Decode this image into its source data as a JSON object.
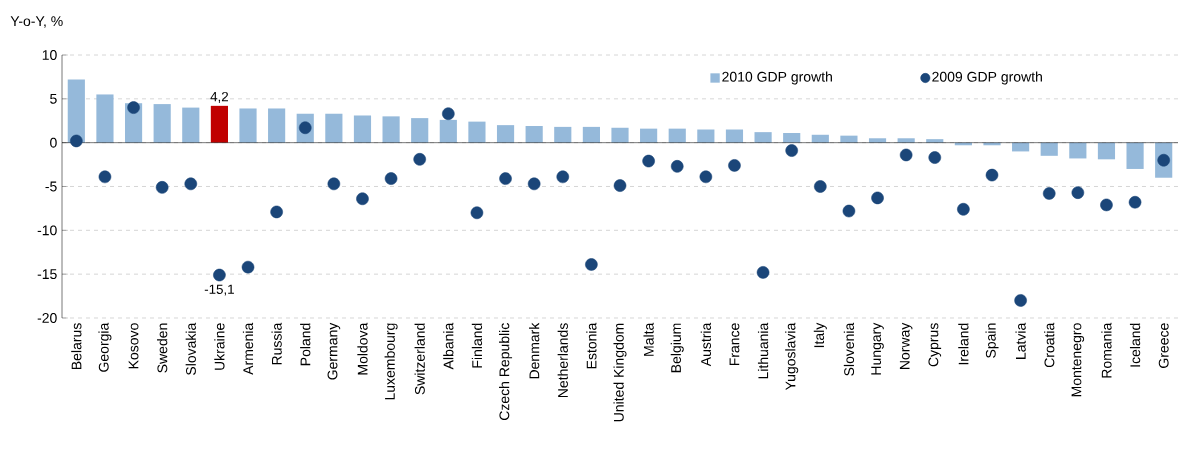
{
  "chart_data": {
    "type": "bar",
    "ylabel": "Y-o-Y, %",
    "categories": [
      "Belarus",
      "Georgia",
      "Kosovo",
      "Sweden",
      "Slovakia",
      "Ukraine",
      "Armenia",
      "Russia",
      "Poland",
      "Germany",
      "Moldova",
      "Luxembourg",
      "Switzerland",
      "Albania",
      "Finland",
      "Czech Republic",
      "Denmark",
      "Netherlands",
      "Estonia",
      "United Kingdom",
      "Malta",
      "Belgium",
      "Austria",
      "France",
      "Lithuania",
      "Yugoslavia",
      "Italy",
      "Slovenia",
      "Hungary",
      "Norway",
      "Cyprus",
      "Ireland",
      "Spain",
      "Latvia",
      "Croatia",
      "Montenegro",
      "Romania",
      "Iceland",
      "Greece"
    ],
    "series": [
      {
        "name": "2010 GDP growth",
        "color": "#95b9da",
        "colors": [
          "#95b9da",
          "#95b9da",
          "#95b9da",
          "#95b9da",
          "#95b9da",
          "#c00000",
          "#95b9da",
          "#95b9da",
          "#95b9da",
          "#95b9da",
          "#95b9da",
          "#95b9da",
          "#95b9da",
          "#95b9da",
          "#95b9da",
          "#95b9da",
          "#95b9da",
          "#95b9da",
          "#95b9da",
          "#95b9da",
          "#95b9da",
          "#95b9da",
          "#95b9da",
          "#95b9da",
          "#95b9da",
          "#95b9da",
          "#95b9da",
          "#95b9da",
          "#95b9da",
          "#95b9da",
          "#95b9da",
          "#95b9da",
          "#95b9da",
          "#95b9da",
          "#95b9da",
          "#95b9da",
          "#95b9da",
          "#95b9da",
          "#95b9da"
        ],
        "values": [
          7.2,
          5.5,
          4.5,
          4.4,
          4.0,
          4.2,
          3.9,
          3.9,
          3.3,
          3.3,
          3.1,
          3.0,
          2.8,
          2.6,
          2.4,
          2.0,
          1.9,
          1.8,
          1.8,
          1.7,
          1.6,
          1.6,
          1.5,
          1.5,
          1.2,
          1.1,
          0.9,
          0.8,
          0.5,
          0.5,
          0.4,
          -0.3,
          -0.3,
          -1.0,
          -1.5,
          -1.8,
          -1.9,
          -3.0,
          -4.0
        ],
        "value_labels": [
          null,
          null,
          null,
          null,
          null,
          "4,2",
          null,
          null,
          null,
          null,
          null,
          null,
          null,
          null,
          null,
          null,
          null,
          null,
          null,
          null,
          null,
          null,
          null,
          null,
          null,
          null,
          null,
          null,
          null,
          null,
          null,
          null,
          null,
          null,
          null,
          null,
          null,
          null,
          null
        ]
      },
      {
        "name": "2009 GDP growth",
        "type": "scatter",
        "marker": "circle",
        "color": "#1b4679",
        "values": [
          0.2,
          -3.9,
          4.0,
          -5.1,
          -4.7,
          -15.1,
          -14.2,
          -7.9,
          1.7,
          -4.7,
          -6.4,
          -4.1,
          -1.9,
          3.3,
          -8.0,
          -4.1,
          -4.7,
          -3.9,
          -13.9,
          -4.9,
          -2.1,
          -2.7,
          -3.9,
          -2.6,
          -14.8,
          -0.9,
          -5.0,
          -7.8,
          -6.3,
          -1.4,
          -1.7,
          -7.6,
          -3.7,
          -18.0,
          -5.8,
          -5.7,
          -7.1,
          -6.8,
          -2.0
        ],
        "value_labels": [
          null,
          null,
          null,
          null,
          null,
          "-15,1",
          null,
          null,
          null,
          null,
          null,
          null,
          null,
          null,
          null,
          null,
          null,
          null,
          null,
          null,
          null,
          null,
          null,
          null,
          null,
          null,
          null,
          null,
          null,
          null,
          null,
          null,
          null,
          null,
          null,
          null,
          null,
          null,
          null
        ]
      }
    ],
    "ylim": [
      -20,
      10
    ],
    "yticks": [
      -20,
      -15,
      -10,
      -5,
      0,
      5,
      10
    ],
    "grid": "y",
    "legend": "top right"
  }
}
